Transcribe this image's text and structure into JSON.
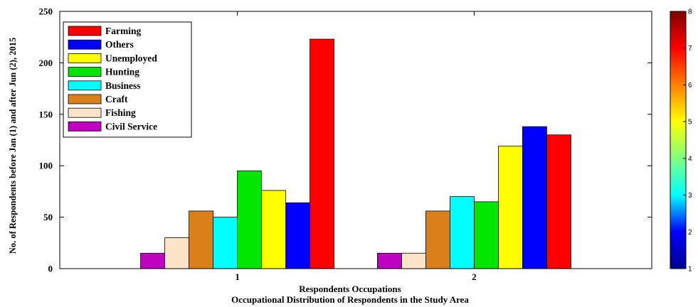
{
  "chart_data": {
    "type": "bar",
    "categories": [
      "1",
      "2"
    ],
    "series": [
      {
        "name": "Civil Service",
        "color": "#c000c0",
        "values": [
          15,
          15
        ]
      },
      {
        "name": "Fishing",
        "color": "#fde4c8",
        "values": [
          30,
          15
        ]
      },
      {
        "name": "Craft",
        "color": "#d9801a",
        "values": [
          56,
          56
        ]
      },
      {
        "name": "Business",
        "color": "#00ffff",
        "values": [
          50,
          70
        ]
      },
      {
        "name": "Hunting",
        "color": "#00e600",
        "values": [
          95,
          65
        ]
      },
      {
        "name": "Unemployed",
        "color": "#ffff00",
        "values": [
          76,
          119
        ]
      },
      {
        "name": "Others",
        "color": "#0000ff",
        "values": [
          64,
          138
        ]
      },
      {
        "name": "Farming",
        "color": "#ff0000",
        "values": [
          223,
          130
        ]
      }
    ],
    "legend_order": [
      "Farming",
      "Others",
      "Unemployed",
      "Hunting",
      "Business",
      "Craft",
      "Fishing",
      "Civil Service"
    ],
    "legend_position": "top-left",
    "xlabel": "Respondents Occupations",
    "subtitle": "Occupational Distribution of Respondents in the Study Area",
    "ylabel": "No. of Respondents before Jan (1) and after Jun (2), 2015",
    "ylim": [
      0,
      250
    ],
    "yticks": [
      0,
      50,
      100,
      150,
      200,
      250
    ],
    "grid": false,
    "colorbar": {
      "range": [
        1,
        8
      ],
      "ticks": [
        1,
        2,
        3,
        4,
        5,
        6,
        7,
        8
      ],
      "colors": [
        "#00008f",
        "#0000ff",
        "#00ffff",
        "#80ff80",
        "#ffff00",
        "#ff8000",
        "#ff0000",
        "#800000"
      ]
    }
  }
}
